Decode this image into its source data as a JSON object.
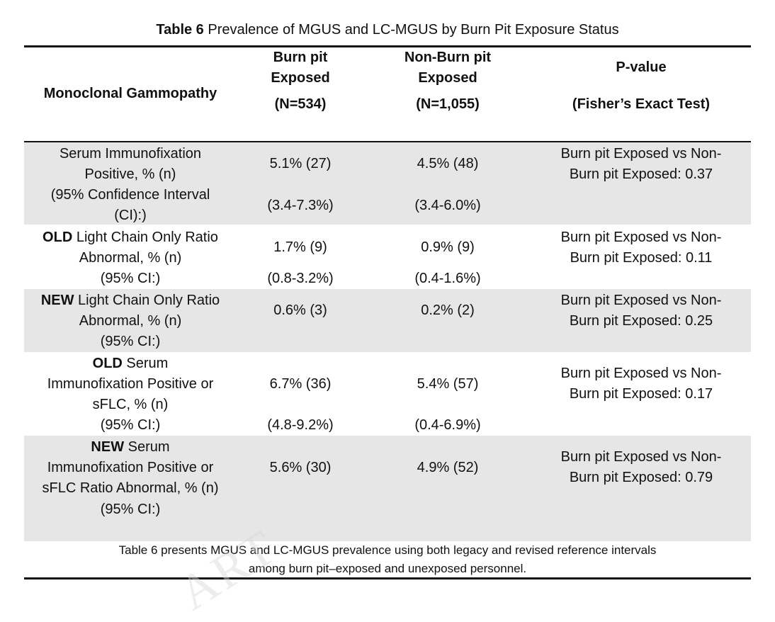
{
  "caption": {
    "label": "Table 6",
    "text": " Prevalence of MGUS and LC-MGUS by Burn Pit Exposure Status"
  },
  "header": {
    "col1": "Monoclonal Gammopathy",
    "col2_line1": "Burn pit",
    "col2_line2": "Exposed",
    "col2_n": "(N=534)",
    "col3_line1": "Non-Burn pit",
    "col3_line2": "Exposed",
    "col3_n": "(N=1,055)",
    "col4_line1": "P-value",
    "col4_line2": "(Fisher’s Exact Test)"
  },
  "rows": [
    {
      "label_lines": [
        "Serum Immunofixation",
        "Positive, % (n)",
        "(95% Confidence Interval",
        "(CI):)"
      ],
      "bold_prefix": "",
      "exposed": "5.1% (27)",
      "exposed_ci": "(3.4-7.3%)",
      "nonexposed": "4.5% (48)",
      "nonexposed_ci": "(3.4-6.0%)",
      "p_line1": "Burn pit Exposed vs Non-",
      "p_line2": "Burn pit Exposed: 0.37"
    },
    {
      "bold_prefix": "OLD",
      "label_line1_rest": " Light Chain Only Ratio",
      "label_line2": "Abnormal, % (n)",
      "label_line3": "(95% CI:)",
      "exposed": "1.7% (9)",
      "exposed_ci": "(0.8-3.2%)",
      "nonexposed": "0.9% (9)",
      "nonexposed_ci": "(0.4-1.6%)",
      "p_line1": "Burn pit Exposed vs Non-",
      "p_line2": "Burn pit Exposed: 0.11"
    },
    {
      "bold_prefix": "NEW",
      "label_line1_rest": " Light Chain Only Ratio",
      "label_line2": "Abnormal, % (n)",
      "label_line3": "(95% CI:)",
      "exposed": "0.6% (3)",
      "nonexposed": "0.2% (2)",
      "p_line1": "Burn pit Exposed vs Non-",
      "p_line2": "Burn pit Exposed: 0.25"
    },
    {
      "bold_prefix": "OLD",
      "label_line1_rest": " Serum",
      "label_line2": "Immunofixation Positive or",
      "label_line3": "sFLC, % (n)",
      "label_line4": "(95% CI:)",
      "exposed": "6.7% (36)",
      "exposed_ci": "(4.8-9.2%)",
      "nonexposed": "5.4% (57)",
      "nonexposed_ci": "(0.4-6.9%)",
      "p_line1": "Burn pit Exposed vs Non-",
      "p_line2": "Burn pit Exposed: 0.17"
    },
    {
      "bold_prefix": "NEW",
      "label_line1_rest": " Serum",
      "label_line2": "Immunofixation Positive or",
      "label_line3": "sFLC Ratio Abnormal, % (n)",
      "label_line4": "(95% CI:)",
      "exposed": "5.6% (30)",
      "nonexposed": "4.9% (52)",
      "p_line1": "Burn pit Exposed vs Non-",
      "p_line2": "Burn pit Exposed:  0.79"
    }
  ],
  "footnote": {
    "line1": "Table 6 presents MGUS and LC-MGUS prevalence using both legacy and revised reference intervals",
    "line2": "among burn pit–exposed and unexposed personnel."
  },
  "colors": {
    "band": "#e6e6e6",
    "rule": "#111111"
  }
}
